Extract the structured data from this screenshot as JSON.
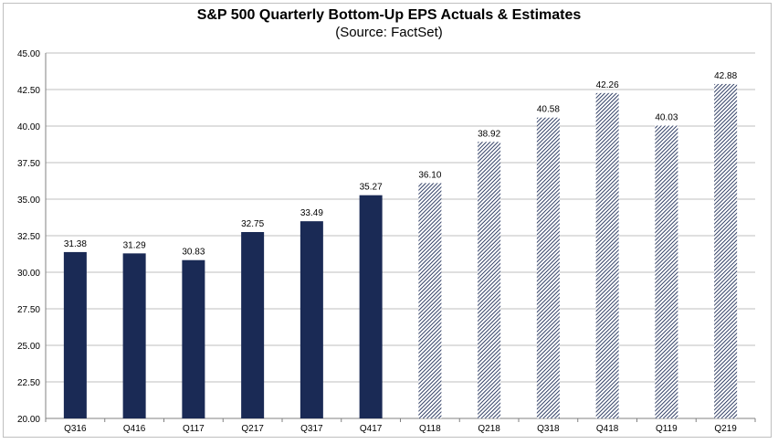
{
  "chart_data": {
    "type": "bar",
    "title": "S&P 500 Quarterly Bottom-Up EPS Actuals & Estimates",
    "subtitle": "(Source: FactSet)",
    "categories": [
      "Q316",
      "Q416",
      "Q117",
      "Q217",
      "Q317",
      "Q417",
      "Q118",
      "Q218",
      "Q318",
      "Q418",
      "Q119",
      "Q219"
    ],
    "values": [
      31.38,
      31.29,
      30.83,
      32.75,
      33.49,
      35.27,
      36.1,
      38.92,
      40.58,
      42.26,
      40.03,
      42.88
    ],
    "labels": [
      "31.38",
      "31.29",
      "30.83",
      "32.75",
      "33.49",
      "35.27",
      "36.10",
      "38.92",
      "40.58",
      "42.26",
      "40.03",
      "42.88"
    ],
    "bar_kind": [
      "actual",
      "actual",
      "actual",
      "actual",
      "actual",
      "actual",
      "estimate",
      "estimate",
      "estimate",
      "estimate",
      "estimate",
      "estimate"
    ],
    "ylim": [
      20,
      45
    ],
    "yticks": [
      "20.00",
      "22.50",
      "25.00",
      "27.50",
      "30.00",
      "32.50",
      "35.00",
      "37.50",
      "40.00",
      "42.50",
      "45.00"
    ],
    "grid": true,
    "colors": {
      "actual": "#1a2a55",
      "estimate_stripe": "#1a2a55",
      "grid": "#bfbfbf"
    }
  }
}
